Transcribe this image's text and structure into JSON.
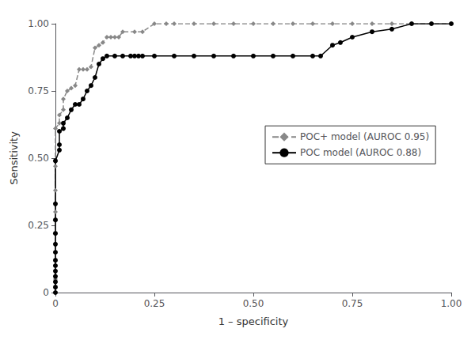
{
  "chart_data": {
    "type": "line",
    "xlabel": "1 – specificity",
    "ylabel": "Sensitivity",
    "series": [
      {
        "name": "POC+ model (AUROC 0.95)",
        "color": "#888888",
        "marker": "diamond",
        "line_style": "dashed",
        "x": [
          0.0,
          0.0,
          0.0,
          0.0,
          0.0,
          0.0,
          0.0,
          0.0,
          0.0,
          0.01,
          0.01,
          0.02,
          0.02,
          0.03,
          0.04,
          0.05,
          0.06,
          0.07,
          0.08,
          0.09,
          0.1,
          0.11,
          0.12,
          0.13,
          0.14,
          0.15,
          0.16,
          0.17,
          0.2,
          0.22,
          0.25,
          0.28,
          0.3,
          0.35,
          0.4,
          0.45,
          0.5,
          0.55,
          0.6,
          0.65,
          0.7,
          0.75,
          0.8,
          0.85,
          0.9,
          0.95,
          1.0
        ],
        "values": [
          0.0,
          0.05,
          0.1,
          0.15,
          0.22,
          0.3,
          0.38,
          0.47,
          0.61,
          0.63,
          0.66,
          0.68,
          0.72,
          0.75,
          0.76,
          0.77,
          0.83,
          0.83,
          0.83,
          0.84,
          0.91,
          0.92,
          0.93,
          0.95,
          0.95,
          0.95,
          0.95,
          0.97,
          0.97,
          0.97,
          1.0,
          1.0,
          1.0,
          1.0,
          1.0,
          1.0,
          1.0,
          1.0,
          1.0,
          1.0,
          1.0,
          1.0,
          1.0,
          1.0,
          1.0,
          1.0,
          1.0
        ]
      },
      {
        "name": "POC model (AUROC 0.88)",
        "color": "#000000",
        "marker": "circle",
        "line_style": "solid",
        "x": [
          0.0,
          0.0,
          0.0,
          0.0,
          0.0,
          0.0,
          0.0,
          0.0,
          0.0,
          0.0,
          0.0,
          0.0,
          0.0,
          0.01,
          0.01,
          0.01,
          0.02,
          0.02,
          0.03,
          0.04,
          0.05,
          0.06,
          0.07,
          0.08,
          0.09,
          0.1,
          0.11,
          0.12,
          0.13,
          0.15,
          0.17,
          0.19,
          0.2,
          0.21,
          0.22,
          0.25,
          0.3,
          0.35,
          0.4,
          0.45,
          0.5,
          0.55,
          0.6,
          0.65,
          0.67,
          0.7,
          0.72,
          0.75,
          0.8,
          0.85,
          0.9,
          0.95,
          1.0
        ],
        "values": [
          0.0,
          0.02,
          0.04,
          0.06,
          0.08,
          0.1,
          0.12,
          0.15,
          0.18,
          0.22,
          0.27,
          0.33,
          0.49,
          0.53,
          0.55,
          0.6,
          0.61,
          0.63,
          0.65,
          0.68,
          0.7,
          0.7,
          0.72,
          0.75,
          0.77,
          0.8,
          0.85,
          0.87,
          0.88,
          0.88,
          0.88,
          0.88,
          0.88,
          0.88,
          0.88,
          0.88,
          0.88,
          0.88,
          0.88,
          0.88,
          0.88,
          0.88,
          0.88,
          0.88,
          0.88,
          0.92,
          0.93,
          0.95,
          0.97,
          0.98,
          1.0,
          1.0,
          1.0
        ]
      }
    ],
    "xlim": [
      0.0,
      1.0
    ],
    "ylim": [
      0.0,
      1.0
    ],
    "xticks": [
      0,
      0.25,
      {
        "value": 0.5,
        "label": "0.50"
      },
      0.75,
      {
        "value": 1,
        "label": "1.00"
      }
    ],
    "yticks": [
      0,
      0.25,
      {
        "value": 0.5,
        "label": "0.50"
      },
      0.75,
      {
        "value": 1,
        "label": "1.00"
      }
    ],
    "grid": false,
    "legend": "right"
  }
}
